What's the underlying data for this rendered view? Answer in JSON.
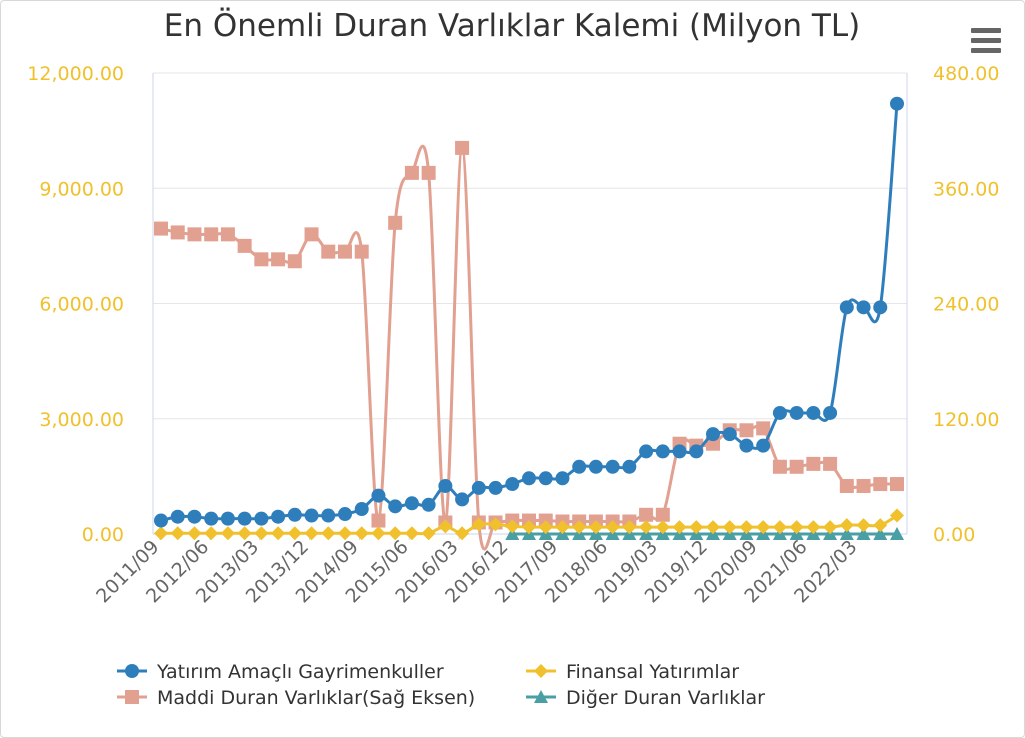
{
  "chart_data": {
    "type": "line",
    "title": "En Önemli Duran Varlıklar Kalemi (Milyon TL)",
    "x_tick_labels": [
      "2011/09",
      "2012/06",
      "2013/03",
      "2013/12",
      "2014/09",
      "2015/06",
      "2016/03",
      "2016/12",
      "2017/09",
      "2018/06",
      "2019/03",
      "2019/12",
      "2020/09",
      "2021/06",
      "2022/03"
    ],
    "y_left": {
      "ticks": [
        "0.00",
        "3,000.00",
        "6,000.00",
        "9,000.00",
        "12,000.00"
      ],
      "ylim": [
        0,
        12000
      ]
    },
    "y_right": {
      "ticks": [
        "0.00",
        "120.00",
        "240.00",
        "360.00",
        "480.00"
      ],
      "ylim": [
        0,
        480
      ]
    },
    "grid": true,
    "legend_position": "bottom",
    "series": [
      {
        "name": "Yatırım Amaçlı Gayrimenkuller",
        "axis": "left",
        "color": "#2f7ebc",
        "marker": "circle",
        "values": [
          350,
          450,
          450,
          400,
          400,
          400,
          400,
          450,
          500,
          480,
          480,
          520,
          650,
          1000,
          720,
          800,
          760,
          1250,
          900,
          1200,
          1200,
          1300,
          1450,
          1450,
          1450,
          1750,
          1750,
          1750,
          1750,
          2150,
          2150,
          2150,
          2150,
          2600,
          2600,
          2300,
          2300,
          3150,
          3150,
          3150,
          3150,
          5900,
          5900,
          5900,
          11200
        ]
      },
      {
        "name": "Maddi Duran Varlıklar(Sağ Eksen)",
        "axis": "right",
        "color": "#e2a090",
        "marker": "square",
        "values": [
          318,
          314,
          312,
          312,
          312,
          300,
          286,
          286,
          284,
          312,
          294,
          294,
          294,
          14,
          324,
          376,
          376,
          12,
          402,
          12,
          12,
          14,
          14,
          14,
          13,
          13,
          13,
          13,
          13,
          20,
          20,
          94,
          92,
          94,
          108,
          108,
          110,
          70,
          70,
          73,
          73,
          50,
          50,
          52,
          52
        ]
      },
      {
        "name": "Finansal Yatırımlar",
        "axis": "left",
        "color": "#f0c12c",
        "marker": "diamond",
        "values": [
          20,
          20,
          20,
          20,
          20,
          20,
          20,
          20,
          20,
          20,
          20,
          20,
          20,
          20,
          20,
          20,
          20,
          200,
          20,
          250,
          250,
          200,
          180,
          180,
          180,
          180,
          180,
          180,
          180,
          180,
          180,
          180,
          180,
          180,
          180,
          180,
          180,
          180,
          180,
          180,
          180,
          230,
          230,
          230,
          480
        ]
      },
      {
        "name": "Diğer Duran Varlıklar",
        "axis": "left",
        "color": "#4a9fa4",
        "marker": "triangle",
        "values": [
          null,
          null,
          null,
          null,
          null,
          null,
          null,
          null,
          null,
          null,
          null,
          null,
          null,
          null,
          null,
          null,
          null,
          null,
          null,
          null,
          null,
          0,
          0,
          0,
          0,
          0,
          0,
          0,
          0,
          0,
          0,
          0,
          0,
          0,
          0,
          0,
          0,
          0,
          0,
          0,
          0,
          0,
          0,
          0,
          0
        ]
      }
    ]
  },
  "legend": [
    {
      "label": "Yatırım Amaçlı Gayrimenkuller",
      "color": "#2f7ebc",
      "marker": "circle"
    },
    {
      "label": "Finansal Yatırımlar",
      "color": "#f0c12c",
      "marker": "diamond"
    },
    {
      "label": "Maddi Duran Varlıklar(Sağ Eksen)",
      "color": "#e2a090",
      "marker": "square"
    },
    {
      "label": "Diğer Duran Varlıklar",
      "color": "#4a9fa4",
      "marker": "triangle"
    }
  ],
  "menu": {
    "icon": "hamburger-menu-icon"
  }
}
